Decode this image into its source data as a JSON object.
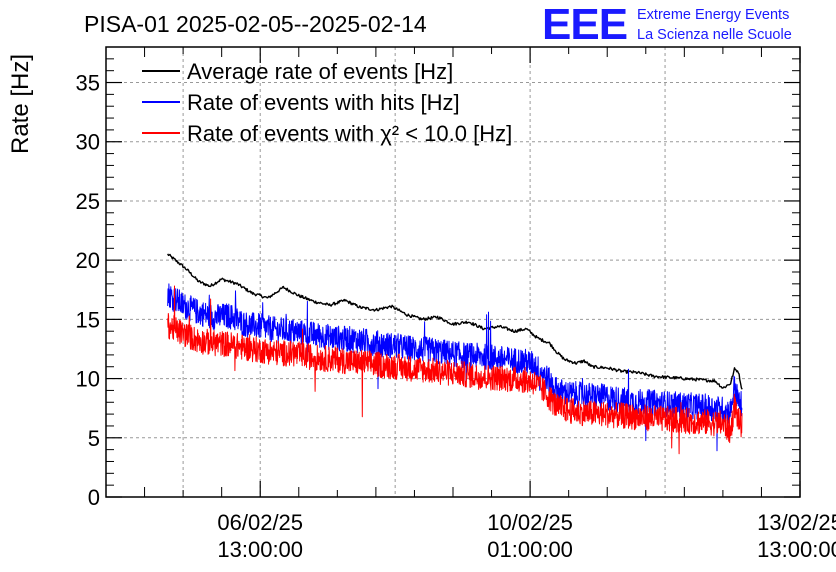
{
  "chart_data": {
    "type": "line",
    "title": "PISA-01 2025-02-05--2025-02-14",
    "ylabel": "Rate [Hz]",
    "xlabel": "",
    "ylim": [
      0,
      37
    ],
    "y_ticks": [
      0,
      5,
      10,
      15,
      20,
      25,
      30,
      35
    ],
    "x_tick_labels": [
      {
        "date": "06/02/25",
        "time": "13:00:00",
        "day": 1.5
      },
      {
        "date": "10/02/25",
        "time": "01:00:00",
        "day": 5.0
      },
      {
        "date": "13/02/25",
        "time": "13:00:00",
        "day": 8.5
      }
    ],
    "xlim_days": [
      -0.5,
      8.5
    ],
    "grid": true,
    "legend_position": "top-left",
    "series": [
      {
        "name": "Average rate of events [Hz]",
        "color": "#000000",
        "kind": "smooth",
        "points": [
          [
            0.3,
            20.5
          ],
          [
            0.4,
            20.0
          ],
          [
            0.55,
            19.2
          ],
          [
            0.7,
            18.2
          ],
          [
            0.85,
            17.8
          ],
          [
            1.0,
            18.4
          ],
          [
            1.2,
            18.0
          ],
          [
            1.4,
            17.2
          ],
          [
            1.6,
            16.8
          ],
          [
            1.8,
            17.7
          ],
          [
            2.0,
            17.0
          ],
          [
            2.2,
            16.5
          ],
          [
            2.4,
            16.2
          ],
          [
            2.6,
            16.6
          ],
          [
            2.8,
            16.0
          ],
          [
            3.0,
            15.8
          ],
          [
            3.2,
            16.1
          ],
          [
            3.4,
            15.4
          ],
          [
            3.6,
            15.0
          ],
          [
            3.8,
            15.2
          ],
          [
            4.0,
            14.6
          ],
          [
            4.2,
            14.8
          ],
          [
            4.4,
            14.2
          ],
          [
            4.6,
            14.4
          ],
          [
            4.8,
            14.0
          ],
          [
            4.95,
            14.2
          ],
          [
            5.1,
            13.4
          ],
          [
            5.25,
            13.0
          ],
          [
            5.35,
            12.2
          ],
          [
            5.45,
            11.6
          ],
          [
            5.6,
            11.3
          ],
          [
            5.7,
            11.5
          ],
          [
            5.8,
            11.0
          ],
          [
            6.0,
            10.9
          ],
          [
            6.2,
            10.6
          ],
          [
            6.4,
            10.5
          ],
          [
            6.6,
            10.2
          ],
          [
            6.8,
            10.1
          ],
          [
            7.0,
            10.0
          ],
          [
            7.2,
            9.9
          ],
          [
            7.4,
            9.8
          ],
          [
            7.5,
            9.2
          ],
          [
            7.6,
            9.6
          ],
          [
            7.65,
            10.8
          ],
          [
            7.7,
            10.6
          ],
          [
            7.75,
            9.0
          ]
        ]
      },
      {
        "name": "Rate of events with hits [Hz]",
        "color": "#0000ff",
        "kind": "noisy",
        "points": [
          [
            0.3,
            17.2
          ],
          [
            0.5,
            16.2
          ],
          [
            0.7,
            15.6
          ],
          [
            0.9,
            15.2
          ],
          [
            1.1,
            15.3
          ],
          [
            1.3,
            14.6
          ],
          [
            1.5,
            14.4
          ],
          [
            1.7,
            14.1
          ],
          [
            1.9,
            14.0
          ],
          [
            2.1,
            13.8
          ],
          [
            2.3,
            13.6
          ],
          [
            2.5,
            13.4
          ],
          [
            2.7,
            13.3
          ],
          [
            2.9,
            13.1
          ],
          [
            3.1,
            12.9
          ],
          [
            3.3,
            12.7
          ],
          [
            3.5,
            12.5
          ],
          [
            3.7,
            12.4
          ],
          [
            3.9,
            12.2
          ],
          [
            4.1,
            12.0
          ],
          [
            4.3,
            11.9
          ],
          [
            4.5,
            11.8
          ],
          [
            4.7,
            11.6
          ],
          [
            4.9,
            11.5
          ],
          [
            5.05,
            11.2
          ],
          [
            5.2,
            10.2
          ],
          [
            5.35,
            9.0
          ],
          [
            5.5,
            8.7
          ],
          [
            5.7,
            8.6
          ],
          [
            5.9,
            8.5
          ],
          [
            6.1,
            8.3
          ],
          [
            6.3,
            8.1
          ],
          [
            6.5,
            8.0
          ],
          [
            6.7,
            7.9
          ],
          [
            6.9,
            7.8
          ],
          [
            7.1,
            7.7
          ],
          [
            7.3,
            7.6
          ],
          [
            7.5,
            7.4
          ],
          [
            7.6,
            7.2
          ],
          [
            7.65,
            9.5
          ],
          [
            7.7,
            8.0
          ],
          [
            7.75,
            7.8
          ]
        ]
      },
      {
        "name": "Rate of events with χ² < 10.0 [Hz]",
        "color": "#ff0000",
        "kind": "noisy",
        "points": [
          [
            0.3,
            14.5
          ],
          [
            0.5,
            13.8
          ],
          [
            0.7,
            13.2
          ],
          [
            0.9,
            13.0
          ],
          [
            1.1,
            12.9
          ],
          [
            1.3,
            12.6
          ],
          [
            1.5,
            12.4
          ],
          [
            1.7,
            12.2
          ],
          [
            1.9,
            12.1
          ],
          [
            2.1,
            11.9
          ],
          [
            2.3,
            11.7
          ],
          [
            2.5,
            11.6
          ],
          [
            2.7,
            11.4
          ],
          [
            2.9,
            11.3
          ],
          [
            3.1,
            11.1
          ],
          [
            3.3,
            11.0
          ],
          [
            3.5,
            10.8
          ],
          [
            3.7,
            10.7
          ],
          [
            3.9,
            10.5
          ],
          [
            4.1,
            10.4
          ],
          [
            4.3,
            10.2
          ],
          [
            4.5,
            10.1
          ],
          [
            4.7,
            10.0
          ],
          [
            4.9,
            9.9
          ],
          [
            5.05,
            9.7
          ],
          [
            5.2,
            8.8
          ],
          [
            5.35,
            7.6
          ],
          [
            5.5,
            7.3
          ],
          [
            5.7,
            7.1
          ],
          [
            5.9,
            7.0
          ],
          [
            6.1,
            6.9
          ],
          [
            6.3,
            6.8
          ],
          [
            6.5,
            6.7
          ],
          [
            6.7,
            6.6
          ],
          [
            6.9,
            6.5
          ],
          [
            7.1,
            6.4
          ],
          [
            7.3,
            6.3
          ],
          [
            7.5,
            6.2
          ],
          [
            7.6,
            5.5
          ],
          [
            7.65,
            7.8
          ],
          [
            7.7,
            6.5
          ],
          [
            7.75,
            6.0
          ]
        ]
      }
    ]
  },
  "logo": {
    "letters": "EEE",
    "line1": "Extreme Energy Events",
    "line2": "La Scienza nelle Scuole",
    "color": "#1a1aff"
  }
}
